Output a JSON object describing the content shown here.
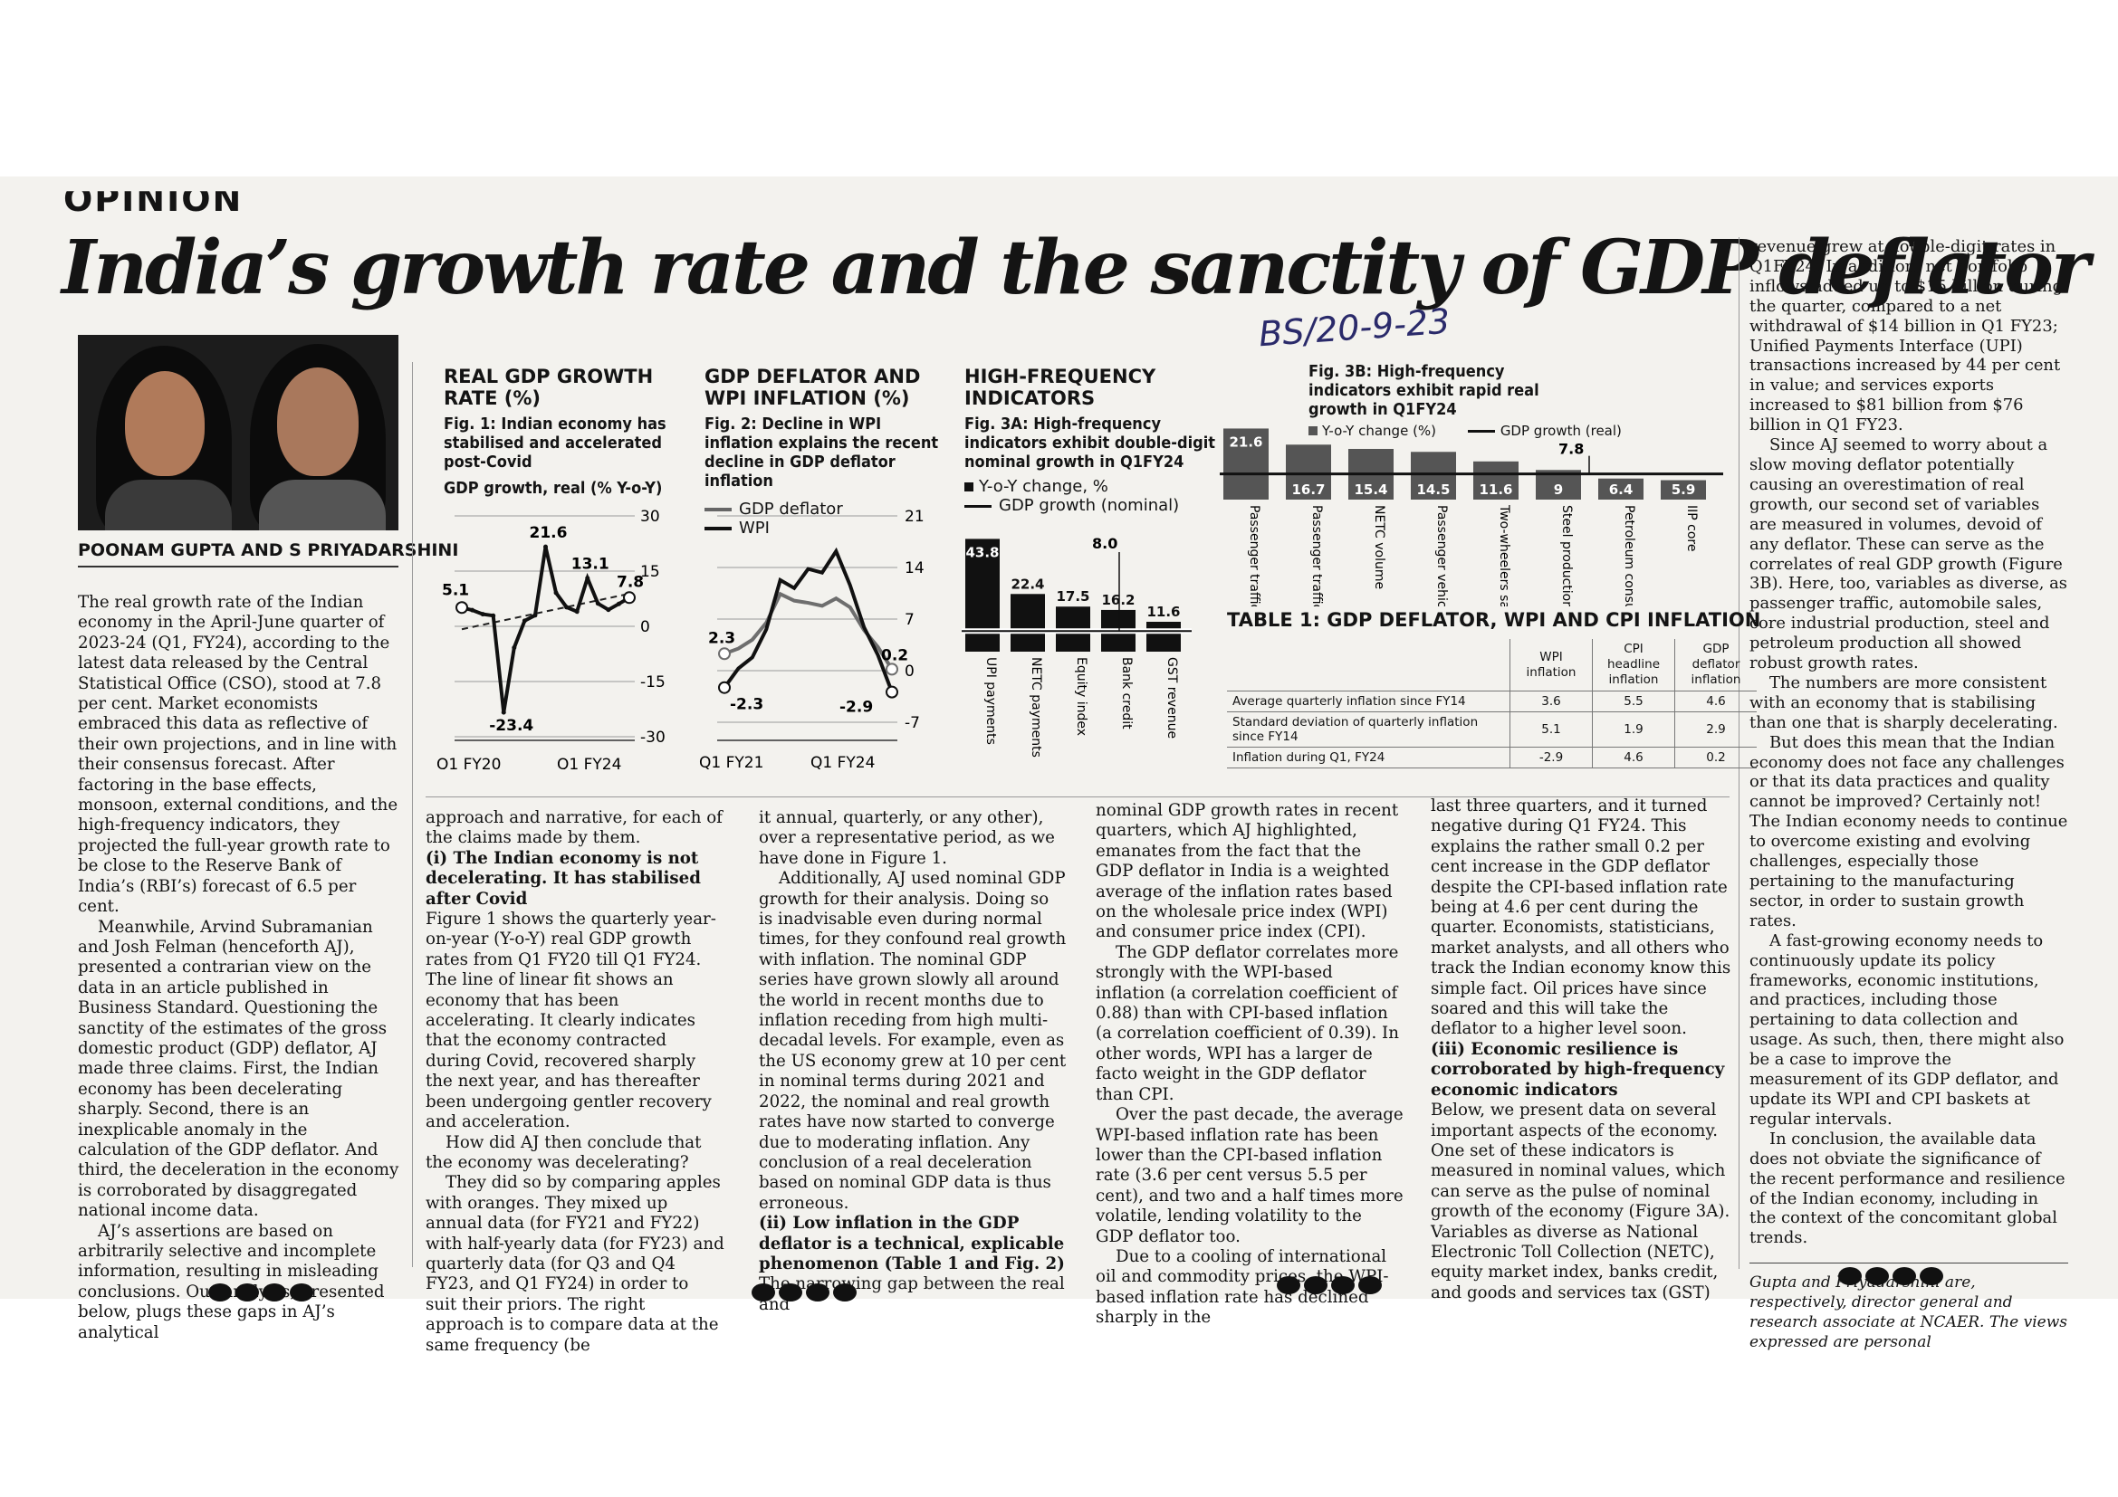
{
  "section": "OPINION",
  "headline": "India’s growth rate and the sanctity of GDP deflator",
  "handnote": "BS/20-9-23",
  "byline": "POONAM GUPTA AND S PRIYADARSHINI",
  "col1": [
    "The real growth rate of the Indian economy in the April-June quarter of 2023-24 (Q1, FY24), according to the latest data released by the Central Statistical Office (CSO), stood at 7.8 per cent. Market economists embraced this data as reflective of their own projections, and in line with their consensus forecast. After factoring in the base effects, monsoon, external conditions, and the high-frequency indicators, they projected the full-year growth rate to be close to the Reserve Bank of India’s (RBI’s) forecast of 6.5 per cent.",
    "Meanwhile, Arvind Subramanian and Josh Felman (henceforth AJ), presented a contrarian view on the data in an article published in Business Standard. Questioning the sanctity of the estimates of the gross domestic product (GDP) deflator, AJ made three claims. First, the Indian economy has been decelerating sharply. Second, there is an inexplicable anomaly in the calculation of the GDP deflator. And third, the deceleration in the economy is corroborated by disaggregated national income data.",
    "AJ’s assertions are based on arbitrarily selective and incomplete information, resulting in misleading conclusions. Our analysis, presented below, plugs these gaps in AJ’s analytical"
  ],
  "col2": {
    "p1": "approach and narrative, for each of the claims made by them.",
    "sub1": "(i) The Indian economy is not decelerating. It has stabilised after Covid",
    "p2": "Figure 1 shows the quarterly year-on-year (Y-o-Y) real GDP growth rates from Q1 FY20 till Q1 FY24. The line of linear fit shows an economy that has been accelerating. It clearly indicates that the economy contracted during Covid, recovered sharply the next year, and has thereafter been undergoing gentler recovery and acceleration.",
    "p3": "How did AJ then conclude that the economy was decelerating?",
    "p4": "They did so by comparing apples with oranges. They mixed up annual data (for FY21 and FY22) with half-yearly data (for FY23) and quarterly data (for Q3 and Q4 FY23, and Q1 FY24) in order to suit their priors. The right approach is to compare data at the same frequency (be"
  },
  "col3": {
    "p1": "it annual, quarterly, or any other), over a representative period, as we have done in Figure 1.",
    "p2": "Additionally, AJ used nominal GDP growth for their analysis. Doing so is inadvisable even during normal times, for they confound real growth with inflation. The nominal GDP series have grown slowly all around the world in recent months due to inflation receding from high multi-decadal levels. For example, even as the US economy grew at 10 per cent in nominal terms during 2021 and 2022, the nominal and real growth rates have now started to converge due to moderating inflation. Any conclusion of a real deceleration based on nominal GDP data is thus erroneous.",
    "sub1": "(ii) Low inflation in the GDP deflator is a technical, explicable phenomenon (Table 1 and Fig. 2)",
    "p3": "The narrowing gap between the real and"
  },
  "col4": {
    "p1": "nominal GDP growth rates in recent quarters, which AJ highlighted, emanates from the fact that the GDP deflator in India is a weighted average of the inflation rates based on the wholesale price index (WPI) and consumer price index (CPI).",
    "p2": "The GDP deflator correlates more strongly with the WPI-based inflation (a correlation coefficient of 0.88) than with CPI-based inflation (a correlation coefficient of 0.39). In other words, WPI has a larger de facto weight in the GDP deflator than CPI.",
    "p3": "Over the past decade, the average WPI-based inflation rate has been lower than the CPI-based inflation rate (3.6 per cent versus 5.5 per cent), and two and a half times more volatile, lending volatility to the GDP deflator too.",
    "p4": "Due to a cooling of international oil and commodity prices, the WPI-based inflation rate has declined sharply in the"
  },
  "col5": {
    "p1": "last three quarters, and it turned negative during Q1 FY24. This explains the rather small 0.2 per cent increase in the GDP deflator despite the CPI-based inflation rate being at 4.6 per cent during the quarter. Economists, statisticians, market analysts, and all others who track the Indian economy know this simple fact. Oil prices have since soared and this will take the deflator to a higher level soon.",
    "sub1": "(iii) Economic resilience is corroborated by high-frequency economic indicators",
    "p2": "Below, we present data on several important aspects of the economy. One set of these indicators is measured in nominal values, which can serve as the pulse of nominal growth of the economy (Figure 3A). Variables as diverse as National Electronic Toll Collection (NETC), equity market index, banks credit, and goods and services tax (GST)"
  },
  "col6": {
    "p1": "revenue grew at double-digit rates in Q1FY24. In addition, net portfolio inflows added up to $15 billion during the quarter, compared to a net withdrawal of $14 billion in Q1 FY23; Unified Payments Interface (UPI) transactions increased by 44 per cent in value; and services exports increased to $81 billion from $76 billion in Q1 FY23.",
    "p2": "Since AJ seemed to worry about a slow moving deflator potentially causing an overestimation of real growth, our second set of variables are measured in volumes, devoid of any deflator. These can serve as the correlates of real GDP growth (Figure 3B). Here, too, variables as diverse, as passenger traffic, automobile sales, core industrial production, steel and petroleum production all showed robust growth rates.",
    "p3": "The numbers are more consistent with an economy that is stabilising than one that is sharply decelerating.",
    "p4": "But does this mean that the Indian economy does not face any challenges or that its data practices and quality cannot be improved? Certainly not! The Indian economy needs to continue to overcome existing and evolving challenges, especially those pertaining to the manufacturing sector, in order to sustain growth rates.",
    "p5": "A fast-growing economy needs to continuously update its policy frameworks, economic institutions, and practices, including those pertaining to data collection and usage. As such, then, there might also be a case to improve the measurement of its GDP deflator, and update its WPI and CPI baskets at regular intervals.",
    "p6": "In conclusion, the available data does not obviate the significance of the recent performance and resilience of the Indian economy, including in the context of the concomitant global trends.",
    "caption": "Gupta and Priyadarshini are, respectively, director general and research associate at NCAER. The views expressed are personal"
  },
  "fig1": {
    "title": "REAL GDP GROWTH RATE (%)",
    "subtitle": "Fig. 1: Indian economy has stabilised and accelerated post-Covid",
    "series_label": "GDP growth, real (% Y-o-Y)",
    "y_ticks": [
      "30",
      "15",
      "0",
      "-15",
      "-30"
    ],
    "x_ticks": [
      "Q1 FY20",
      "Q1 FY24"
    ],
    "labels": {
      "first": "5.1",
      "min": "-23.4",
      "max": "21.6",
      "mid": "13.1",
      "last": "7.8"
    }
  },
  "fig2": {
    "title": "GDP DEFLATOR AND WPI INFLATION (%)",
    "subtitle": "Fig. 2: Decline in WPI inflation explains the recent decline in GDP deflator inflation",
    "legend": [
      "GDP deflator",
      "WPI"
    ],
    "y_ticks": [
      "21",
      "14",
      "7",
      "0",
      "-7"
    ],
    "x_ticks": [
      "Q1 FY21",
      "Q1 FY24"
    ],
    "labels": {
      "a": "2.3",
      "b": "-2.3",
      "c": "0.2",
      "d": "-2.9"
    }
  },
  "fig3": {
    "title": "HIGH-FREQUENCY INDICATORS",
    "subtitle_a": "Fig. 3A: High-frequency indicators exhibit double-digit nominal growth in Q1FY24",
    "legend_a": [
      "Y-o-Y change, %",
      "GDP growth (nominal)"
    ],
    "subtitle_b": "Fig. 3B: High-frequency indicators exhibit rapid real growth in Q1FY24",
    "legend_b": [
      "Y-o-Y change (%)",
      "GDP growth (real)"
    ],
    "line_a": "8.0",
    "line_b": "7.8"
  },
  "chart_data": [
    {
      "type": "line",
      "title": "REAL GDP GROWTH RATE (%)",
      "ylabel": "GDP growth, real (% Y-o-Y)",
      "ylim": [
        -30,
        30
      ],
      "x": [
        "Q1 FY20",
        "Q2 FY20",
        "Q3 FY20",
        "Q4 FY20",
        "Q1 FY21",
        "Q2 FY21",
        "Q3 FY21",
        "Q4 FY21",
        "Q1 FY22",
        "Q2 FY22",
        "Q3 FY22",
        "Q4 FY22",
        "Q1 FY23",
        "Q2 FY23",
        "Q3 FY23",
        "Q4 FY23",
        "Q1 FY24"
      ],
      "series": [
        {
          "values": [
            5.1,
            4.4,
            3.3,
            2.9,
            -23.4,
            -5.8,
            1.5,
            3.0,
            21.6,
            9.1,
            5.2,
            4.0,
            13.1,
            6.2,
            4.5,
            6.1,
            7.8
          ]
        }
      ]
    },
    {
      "type": "line",
      "title": "GDP DEFLATOR AND WPI INFLATION (%)",
      "ylim": [
        -7,
        21
      ],
      "x": [
        "Q1 FY21",
        "Q2 FY21",
        "Q3 FY21",
        "Q4 FY21",
        "Q1 FY22",
        "Q2 FY22",
        "Q3 FY22",
        "Q4 FY22",
        "Q1 FY23",
        "Q2 FY23",
        "Q3 FY23",
        "Q4 FY23",
        "Q1 FY24"
      ],
      "series": [
        {
          "name": "GDP deflator",
          "values": [
            2.3,
            3.0,
            4.2,
            6.5,
            10.4,
            9.5,
            9.2,
            8.8,
            9.8,
            8.6,
            5.5,
            3.2,
            0.2
          ]
        },
        {
          "name": "WPI",
          "values": [
            -2.3,
            0.3,
            1.8,
            5.6,
            12.3,
            11.2,
            13.8,
            13.3,
            16.2,
            11.6,
            5.9,
            2.1,
            -2.9
          ]
        }
      ]
    },
    {
      "type": "bar",
      "title": "Fig. 3A: High-frequency indicators exhibit double-digit nominal growth in Q1FY24",
      "categories": [
        "UPI payments",
        "NETC payments",
        "Equity index",
        "Bank credit",
        "GST revenue"
      ],
      "values": [
        43.8,
        22.4,
        17.5,
        16.2,
        11.6
      ],
      "reference_line": {
        "name": "GDP growth (nominal)",
        "value": 8.0
      }
    },
    {
      "type": "bar",
      "title": "Fig. 3B: High-frequency indicators exhibit rapid real growth in Q1FY24",
      "categories": [
        "Passenger traffic (air)",
        "Passenger traffic (rail)",
        "NETC volume",
        "Passenger vehicles sales",
        "Two-wheelers sales",
        "Steel production",
        "Petroleum consumption",
        "IIP core"
      ],
      "values": [
        21.6,
        16.7,
        15.4,
        14.5,
        11.6,
        9.0,
        6.4,
        5.9
      ],
      "reference_line": {
        "name": "GDP growth (real)",
        "value": 7.8
      }
    },
    {
      "type": "table",
      "title": "TABLE 1: GDP DEFLATOR, WPI AND CPI INFLATION",
      "columns": [
        "",
        "WPI inflation",
        "CPI headline inflation",
        "GDP deflator inflation"
      ],
      "rows": [
        [
          "Average quarterly inflation since FY14",
          "3.6",
          "5.5",
          "4.6"
        ],
        [
          "Standard deviation of quarterly inflation since FY14",
          "5.1",
          "1.9",
          "2.9"
        ],
        [
          "Inflation during Q1, FY24",
          "-2.9",
          "4.6",
          "0.2"
        ]
      ]
    }
  ]
}
